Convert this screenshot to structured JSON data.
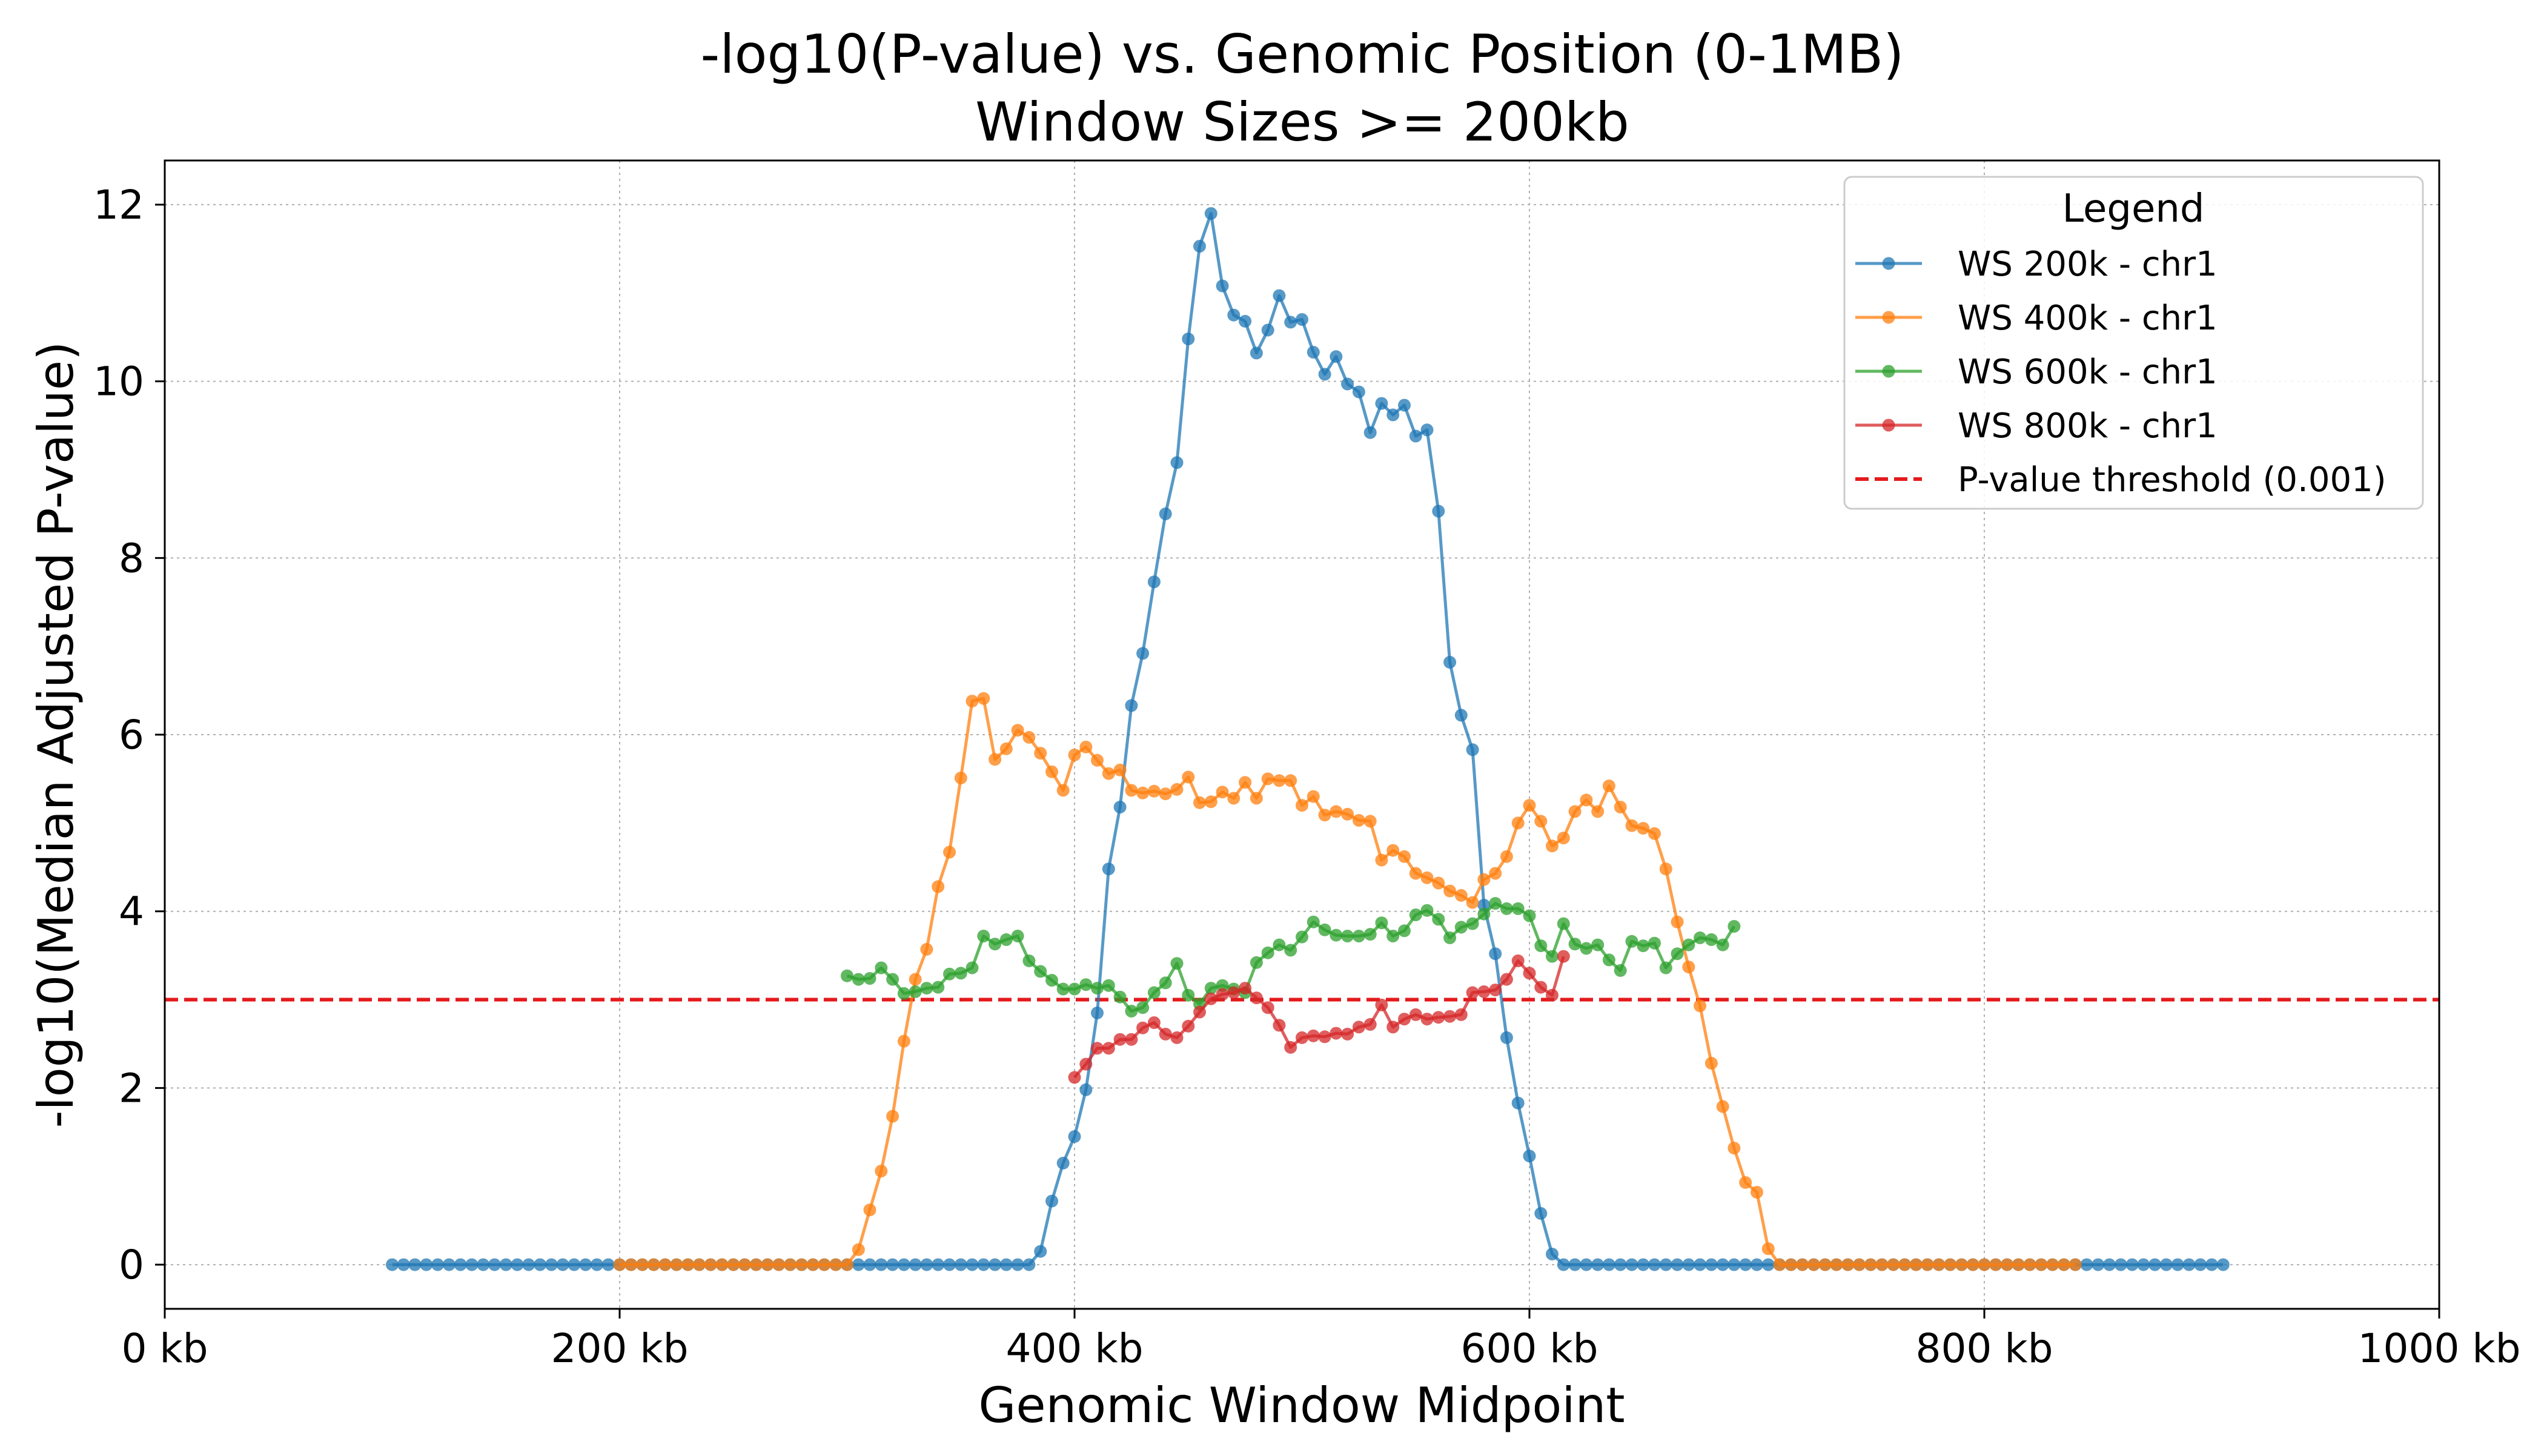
{
  "chart_data": {
    "type": "line",
    "title": "-log10(P-value) vs. Genomic Position (0-1MB)",
    "subtitle": "Window Sizes >= 200kb",
    "xlabel": "Genomic Window Midpoint",
    "ylabel": "-log10(Median Adjusted P-value)",
    "xlim": [
      0,
      1000
    ],
    "ylim": [
      -0.5,
      12.5
    ],
    "x_ticks": [
      {
        "value": 0,
        "label": "0 kb"
      },
      {
        "value": 200,
        "label": "200 kb"
      },
      {
        "value": 400,
        "label": "400 kb"
      },
      {
        "value": 600,
        "label": "600 kb"
      },
      {
        "value": 800,
        "label": "800 kb"
      },
      {
        "value": 1000,
        "label": "1000 kb"
      }
    ],
    "y_ticks": [
      {
        "value": 0,
        "label": "0"
      },
      {
        "value": 2,
        "label": "2"
      },
      {
        "value": 4,
        "label": "4"
      },
      {
        "value": 6,
        "label": "6"
      },
      {
        "value": 8,
        "label": "8"
      },
      {
        "value": 10,
        "label": "10"
      },
      {
        "value": 12,
        "label": "12"
      }
    ],
    "grid": true,
    "legend": {
      "title": "Legend",
      "placement": "top-right"
    },
    "threshold": {
      "name": "P-value threshold (0.001)",
      "y": 3,
      "color": "#e41a1c",
      "style": "dashed"
    },
    "series": [
      {
        "name": "WS 200k - chr1",
        "color": "#1f77b4",
        "x_start": 100,
        "x_step": 5,
        "y": [
          0,
          0,
          0,
          0,
          0,
          0,
          0,
          0,
          0,
          0,
          0,
          0,
          0,
          0,
          0,
          0,
          0,
          0,
          0,
          0,
          0,
          0,
          0,
          0,
          0,
          0,
          0,
          0,
          0,
          0,
          0,
          0,
          0,
          0,
          0,
          0,
          0,
          0,
          0,
          0,
          0,
          0,
          0,
          0,
          0,
          0,
          0,
          0,
          0,
          0,
          0,
          0,
          0,
          0,
          0,
          0,
          0,
          0.15,
          0.72,
          1.15,
          1.45,
          1.98,
          2.85,
          4.48,
          5.18,
          6.33,
          6.92,
          7.73,
          8.5,
          9.08,
          10.48,
          11.53,
          11.9,
          11.08,
          10.75,
          10.68,
          10.32,
          10.58,
          10.97,
          10.67,
          10.7,
          10.33,
          10.08,
          10.28,
          9.97,
          9.88,
          9.42,
          9.75,
          9.62,
          9.73,
          9.38,
          9.45,
          8.53,
          6.82,
          6.22,
          5.83,
          4.07,
          3.52,
          2.57,
          1.83,
          1.23,
          0.58,
          0.12,
          0,
          0,
          0,
          0,
          0,
          0,
          0,
          0,
          0,
          0,
          0,
          0,
          0,
          0,
          0,
          0,
          0,
          0,
          0,
          0,
          0,
          0,
          0,
          0,
          0,
          0,
          0,
          0,
          0,
          0,
          0,
          0,
          0,
          0,
          0,
          0,
          0,
          0,
          0,
          0,
          0,
          0,
          0,
          0,
          0,
          0,
          0,
          0,
          0,
          0,
          0,
          0,
          0,
          0,
          0,
          0,
          0,
          0,
          0
        ]
      },
      {
        "name": "WS 400k - chr1",
        "color": "#ff7f0e",
        "x_start": 200,
        "x_step": 5,
        "y": [
          0,
          0,
          0,
          0,
          0,
          0,
          0,
          0,
          0,
          0,
          0,
          0,
          0,
          0,
          0,
          0,
          0,
          0,
          0,
          0,
          0,
          0.17,
          0.62,
          1.06,
          1.68,
          2.53,
          3.23,
          3.57,
          4.28,
          4.67,
          5.51,
          6.38,
          6.41,
          5.72,
          5.84,
          6.05,
          5.97,
          5.79,
          5.58,
          5.37,
          5.77,
          5.86,
          5.71,
          5.56,
          5.6,
          5.37,
          5.34,
          5.36,
          5.33,
          5.38,
          5.52,
          5.23,
          5.24,
          5.35,
          5.28,
          5.46,
          5.28,
          5.5,
          5.48,
          5.48,
          5.2,
          5.3,
          5.09,
          5.13,
          5.1,
          5.03,
          5.02,
          4.58,
          4.69,
          4.62,
          4.43,
          4.38,
          4.32,
          4.23,
          4.18,
          4.1,
          4.36,
          4.43,
          4.62,
          5.0,
          5.2,
          5.02,
          4.74,
          4.83,
          5.13,
          5.26,
          5.13,
          5.42,
          5.18,
          4.97,
          4.94,
          4.88,
          4.48,
          3.88,
          3.37,
          2.93,
          2.28,
          1.79,
          1.32,
          0.93,
          0.82,
          0.18,
          0,
          0,
          0,
          0,
          0,
          0,
          0,
          0,
          0,
          0,
          0,
          0,
          0,
          0,
          0,
          0,
          0,
          0,
          0,
          0,
          0,
          0,
          0,
          0,
          0,
          0,
          0
        ]
      },
      {
        "name": "WS 600k - chr1",
        "color": "#2ca02c",
        "x_start": 300,
        "x_step": 5,
        "y": [
          3.27,
          3.23,
          3.24,
          3.36,
          3.23,
          3.07,
          3.09,
          3.13,
          3.14,
          3.29,
          3.3,
          3.36,
          3.72,
          3.63,
          3.68,
          3.72,
          3.44,
          3.32,
          3.22,
          3.12,
          3.12,
          3.17,
          3.13,
          3.16,
          3.03,
          2.87,
          2.91,
          3.08,
          3.19,
          3.41,
          3.05,
          2.95,
          3.13,
          3.16,
          3.12,
          3.08,
          3.42,
          3.53,
          3.62,
          3.56,
          3.71,
          3.88,
          3.79,
          3.73,
          3.72,
          3.72,
          3.74,
          3.87,
          3.72,
          3.78,
          3.96,
          4.01,
          3.91,
          3.7,
          3.82,
          3.86,
          3.97,
          4.09,
          4.03,
          4.03,
          3.95,
          3.61,
          3.49,
          3.86,
          3.63,
          3.58,
          3.62,
          3.45,
          3.33,
          3.66,
          3.61,
          3.64,
          3.36,
          3.52,
          3.62,
          3.7,
          3.68,
          3.62,
          3.83
        ]
      },
      {
        "name": "WS 800k - chr1",
        "color": "#d62728",
        "x_start": 400,
        "x_step": 5,
        "y": [
          2.12,
          2.27,
          2.45,
          2.45,
          2.55,
          2.55,
          2.68,
          2.74,
          2.61,
          2.57,
          2.7,
          2.86,
          3.01,
          3.06,
          3.08,
          3.13,
          3.02,
          2.91,
          2.71,
          2.46,
          2.57,
          2.59,
          2.58,
          2.62,
          2.61,
          2.69,
          2.72,
          2.94,
          2.69,
          2.78,
          2.83,
          2.78,
          2.8,
          2.81,
          2.83,
          3.08,
          3.09,
          3.11,
          3.23,
          3.44,
          3.3,
          3.14,
          3.05,
          3.49
        ]
      }
    ]
  }
}
